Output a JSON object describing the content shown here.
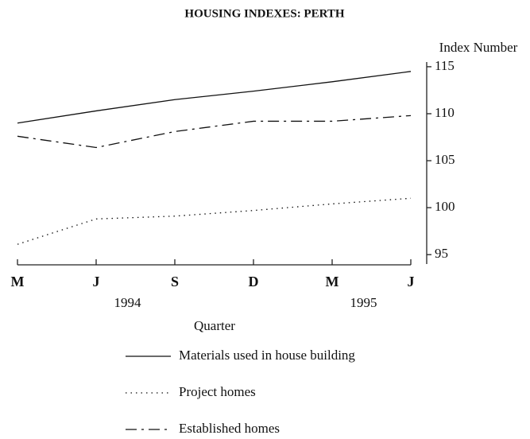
{
  "chart_data": {
    "type": "line",
    "title": "HOUSING INDEXES:  PERTH",
    "y_label": "Index Number",
    "x_label": "Quarter",
    "categories": [
      "M",
      "J",
      "S",
      "D",
      "M",
      "J"
    ],
    "year_labels": [
      "1994",
      "1995"
    ],
    "series": [
      {
        "name": "Materials used in house building",
        "color": "#111111",
        "dash": "solid",
        "values": [
          109.0,
          110.3,
          111.5,
          112.4,
          113.4,
          114.5
        ]
      },
      {
        "name": "Project homes",
        "color": "#111111",
        "dash": "dotted",
        "values": [
          96.1,
          98.8,
          99.1,
          99.7,
          100.4,
          101.0
        ]
      },
      {
        "name": "Established homes",
        "color": "#111111",
        "dash": "dashed",
        "values": [
          107.6,
          106.4,
          108.1,
          109.2,
          109.2,
          109.8
        ]
      }
    ],
    "ylim": [
      94,
      115.5
    ],
    "yticks": [
      95,
      100,
      105,
      110,
      115
    ],
    "y_axis_side": "right",
    "grid": false
  }
}
